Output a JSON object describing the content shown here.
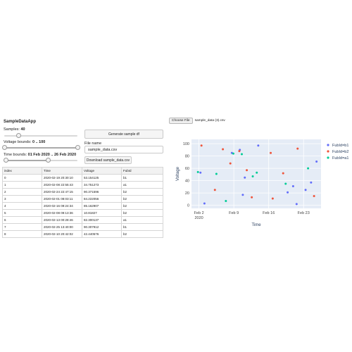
{
  "app": {
    "title": "SampleDataApp"
  },
  "controls": {
    "samples_label": "Samples:",
    "samples_value": "40",
    "samples_fraction": 0.2,
    "voltage_label": "Voltage bounds:",
    "voltage_value": "0 .. 100",
    "voltage_range_fraction": [
      0.0,
      1.0
    ],
    "time_label": "Time bounds:",
    "time_value": "01 Feb 2020 .. 26 Feb 2020",
    "time_range_fraction": [
      0.02,
      0.6
    ],
    "generate_button": "Generate sample df",
    "file_name_label": "File name",
    "file_name_value": "sample_data.csv",
    "download_button": "Download sample_data.csv",
    "choose_file_button": "Choose File",
    "chosen_file_name": "sample_data (3).csv"
  },
  "table": {
    "columns": [
      "index",
      "Time",
      "Voltage",
      "FubId"
    ],
    "rows": [
      [
        "0",
        "2020-02-19 20:30:10",
        "53.154125",
        "b1"
      ],
      [
        "1",
        "2020-02-08 22:55:43",
        "34.751273",
        "a1"
      ],
      [
        "2",
        "2020-02-24 22:47:15",
        "90.371596",
        "b2"
      ],
      [
        "3",
        "2020-02-01 08:03:11",
        "84.222056",
        "b2"
      ],
      [
        "4",
        "2020-02-16 09:24:34",
        "85.162907",
        "b2"
      ],
      [
        "5",
        "2020-02-08 09:13:36",
        "10.81827",
        "b2"
      ],
      [
        "6",
        "2020-02-13 00:28:46",
        "82.300137",
        "a1"
      ],
      [
        "7",
        "2020-02-25 13:40:00",
        "90.307912",
        "b1"
      ],
      [
        "8",
        "2020-02-10 20:42:02",
        "42.440576",
        "b2"
      ]
    ]
  },
  "chart_data": {
    "type": "scatter",
    "xlabel": "Time",
    "ylabel": "Voltage",
    "x_ticks": [
      "Feb 2",
      "Feb 9",
      "Feb 16",
      "Feb 23"
    ],
    "x_tick_year": "2020",
    "x_range": [
      0.5,
      26.5
    ],
    "y_ticks": [
      "0",
      "20",
      "40",
      "60",
      "80",
      "100"
    ],
    "ylim": [
      -5,
      107
    ],
    "legend_position": "right",
    "colors": {
      "FubId=b1": "#636efa",
      "FubId=b2": "#ef553b",
      "FubId=a1": "#00cc96"
    },
    "series": [
      {
        "name": "FubId=b1",
        "x": [
          2.3,
          3.1,
          8.6,
          10.2,
          10.8,
          11.2,
          13.9,
          19.8,
          20.9,
          21.6,
          23.4,
          24.5,
          25.6
        ],
        "y": [
          53,
          3,
          85,
          90,
          17,
          45,
          97,
          21,
          31,
          2,
          25,
          37,
          71
        ]
      },
      {
        "name": "FubId=b2",
        "x": [
          2.5,
          5.2,
          6.8,
          8.3,
          10.1,
          11.6,
          12.6,
          16.4,
          16.8,
          18.9,
          21.8,
          25.1
        ],
        "y": [
          97,
          25,
          91,
          68,
          88,
          57,
          13,
          85,
          11,
          52,
          92,
          15
        ]
      },
      {
        "name": "FubId=a1",
        "x": [
          1.8,
          5.5,
          7.4,
          8.9,
          10.6,
          12.8,
          13.6,
          19.4,
          23.9
        ],
        "y": [
          54,
          51,
          7,
          84,
          83,
          47,
          53,
          35,
          60
        ]
      }
    ]
  }
}
